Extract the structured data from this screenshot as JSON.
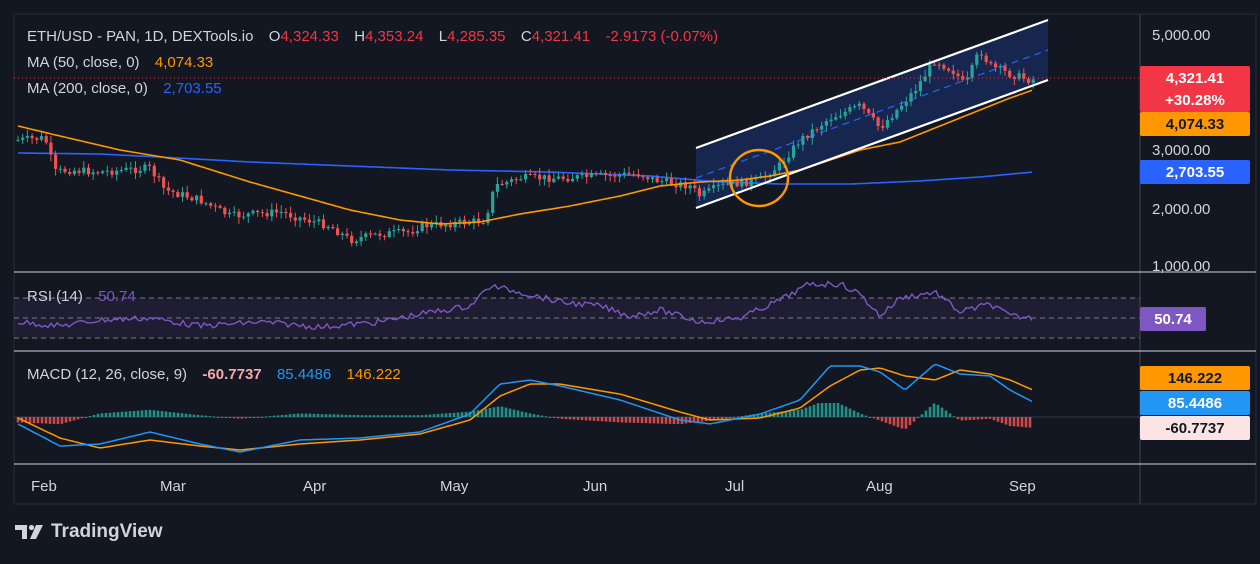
{
  "header": {
    "symbol": "ETH/USD - PAN, 1D, DEXTools.io",
    "o_label": "O",
    "o_value": "4,324.33",
    "h_label": "H",
    "h_value": "4,353.24",
    "l_label": "L",
    "l_value": "4,285.35",
    "c_label": "C",
    "c_value": "4,321.41",
    "change": "-2.9173 (-0.07%)"
  },
  "ma50": {
    "label": "MA (50, close, 0)",
    "value": "4,074.33",
    "color": "#ff9800"
  },
  "ma200": {
    "label": "MA (200, close, 0)",
    "value": "2,703.55",
    "color": "#2962ff"
  },
  "rsi": {
    "label": "RSI (14)",
    "value": "50.74",
    "color": "#7e57c2"
  },
  "macd": {
    "label": "MACD (12, 26, close, 9)",
    "hist_value": "-60.7737",
    "macd_value": "85.4486",
    "signal_value": "146.222"
  },
  "price_scale": [
    "5,000.00",
    "3,000.00",
    "2,000.00",
    "1,000.00"
  ],
  "price_tags": {
    "last_price": "4,321.41",
    "last_change": "+30.28%",
    "ma50": "4,074.33",
    "ma200": "2,703.55",
    "rsi": "50.74",
    "signal": "146.222",
    "macd": "85.4486",
    "hist": "-60.7737"
  },
  "time_axis": [
    "Feb",
    "Mar",
    "Apr",
    "May",
    "Jun",
    "Jul",
    "Aug",
    "Sep"
  ],
  "brand": "TradingView",
  "colors": {
    "up": "#26a69a",
    "down": "#ef5350",
    "ma50": "#ff9800",
    "ma200": "#2962ff",
    "rsi": "#7e57c2",
    "macd": "#2196f3",
    "signal": "#ff9800",
    "channel": "#ffffff",
    "highlight": "#ff9800",
    "background": "#131722"
  },
  "chart_data": {
    "type": "candlestick",
    "scale": "log",
    "ylim": [
      1000,
      5000
    ],
    "x": [
      "Feb",
      "Mar",
      "Apr",
      "May",
      "Jun",
      "Jul",
      "Aug",
      "Sep"
    ],
    "close_approx": [
      3300,
      3150,
      2700,
      2250,
      1800,
      1600,
      1800,
      1800,
      2600,
      2600,
      2500,
      2550,
      2400,
      2600,
      3000,
      3700,
      3600,
      4700,
      4100,
      4350
    ],
    "series": [
      {
        "name": "MA (50, close, 0)",
        "last": 4074.33
      },
      {
        "name": "MA (200, close, 0)",
        "last": 2703.55
      }
    ],
    "rsi": {
      "last": 50.74,
      "levels": [
        70,
        50,
        30
      ]
    },
    "macd": {
      "macd": 85.4486,
      "signal": 146.222,
      "hist": -60.7737
    }
  }
}
